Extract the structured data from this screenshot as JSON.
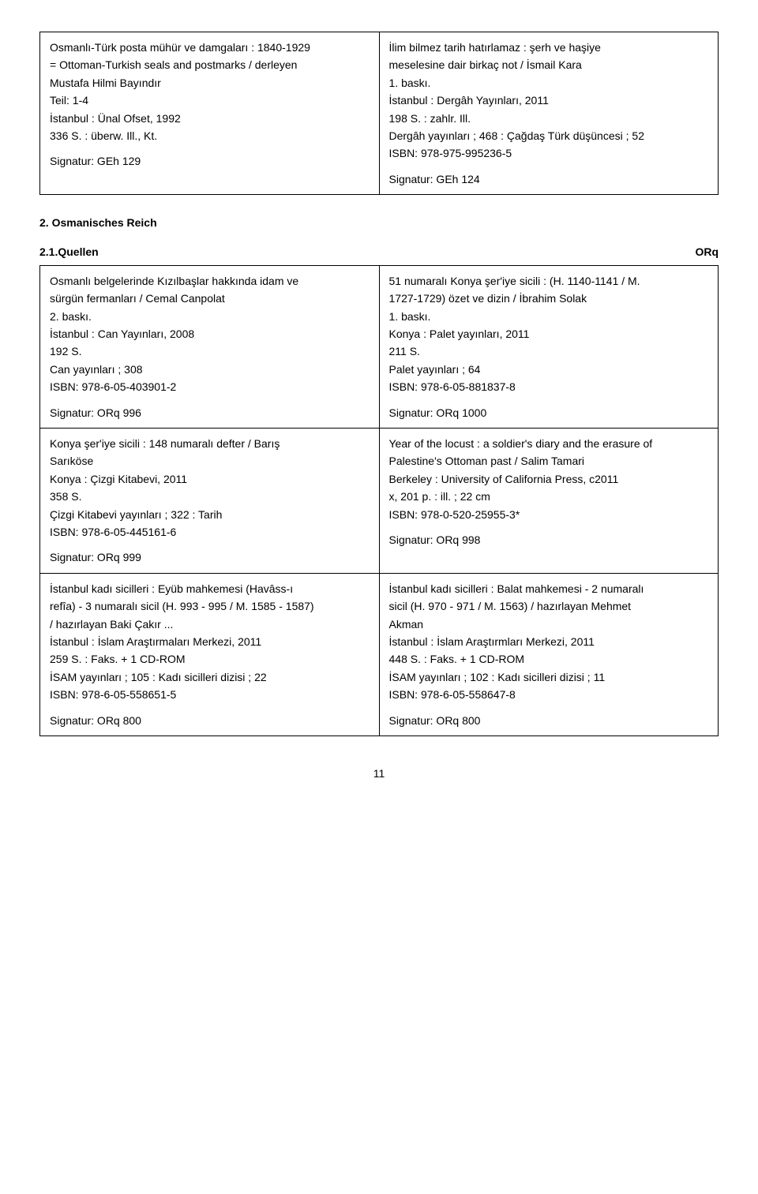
{
  "table1": {
    "left": {
      "lines": [
        "Osmanlı-Türk posta mühür ve damgaları : 1840-1929",
        "= Ottoman-Turkish seals and postmarks / derleyen",
        "Mustafa Hilmi Bayındır",
        "Teil: 1-4",
        "İstanbul : Ünal Ofset, 1992",
        "336 S. : überw. Ill., Kt."
      ],
      "signature": "Signatur: GEh 129"
    },
    "right": {
      "lines": [
        "İlim bilmez tarih hatırlamaz : şerh ve haşiye",
        "meselesine dair birkaç not / İsmail Kara",
        "1. baskı.",
        "İstanbul : Dergâh Yayınları, 2011",
        "198 S. : zahlr. Ill.",
        "Dergâh yayınları ; 468 : Çağdaş Türk düşüncesi ; 52",
        "ISBN: 978-975-995236-5"
      ],
      "signature": "Signatur: GEh 124"
    }
  },
  "section_heading": "2. Osmanisches Reich",
  "subsection": {
    "label": "2.1.Quellen",
    "code": "ORq"
  },
  "table2": {
    "row1": {
      "left": {
        "lines": [
          "Osmanlı belgelerinde Kızılbaşlar hakkında idam ve",
          "sürgün fermanları / Cemal Canpolat",
          "2. baskı.",
          "İstanbul : Can Yayınları, 2008",
          "192 S.",
          "Can yayınları ; 308",
          "ISBN: 978-6-05-403901-2"
        ],
        "signature": "Signatur: ORq 996"
      },
      "right": {
        "lines": [
          "51 numaralı Konya şer'iye sicili : (H. 1140-1141 / M.",
          "1727-1729) özet ve dizin / İbrahim Solak",
          "1. baskı.",
          "Konya : Palet yayınları, 2011",
          "211 S.",
          "Palet yayınları ; 64",
          "ISBN: 978-6-05-881837-8"
        ],
        "signature": "Signatur: ORq 1000"
      }
    },
    "row2": {
      "left": {
        "lines": [
          "Konya şer'iye sicili : 148 numaralı defter / Barış",
          "Sarıköse",
          "Konya : Çizgi Kitabevi, 2011",
          "358 S.",
          "Çizgi Kitabevi yayınları ; 322 : Tarih",
          "ISBN: 978-6-05-445161-6"
        ],
        "signature": "Signatur: ORq 999"
      },
      "right": {
        "lines": [
          "Year of the locust : a soldier's diary and the erasure of",
          "Palestine's Ottoman past / Salim Tamari",
          "Berkeley : University of California Press, c2011",
          "x, 201 p. : ill. ; 22 cm",
          "ISBN: 978-0-520-25955-3*"
        ],
        "signature": "Signatur: ORq 998"
      }
    },
    "row3": {
      "left": {
        "lines": [
          "İstanbul kadı sicilleri : Eyüb mahkemesi (Havâss-ı",
          "refîa) - 3 numaralı sicil (H. 993 - 995 / M. 1585 - 1587)",
          "/ hazırlayan Baki Çakır ...",
          "İstanbul : İslam Araştırmaları Merkezi, 2011",
          "259 S. : Faks. + 1 CD-ROM",
          "İSAM yayınları ; 105 : Kadı sicilleri dizisi ; 22",
          "ISBN: 978-6-05-558651-5"
        ],
        "signature": "Signatur: ORq 800"
      },
      "right": {
        "lines": [
          "İstanbul kadı sicilleri  : Balat mahkemesi - 2 numaralı",
          "sicil (H. 970 - 971 / M. 1563) / hazırlayan Mehmet",
          "Akman",
          "İstanbul : İslam Araştırmları Merkezi, 2011",
          "448 S. : Faks. + 1 CD-ROM",
          "İSAM yayınları ; 102 : Kadı sicilleri dizisi ; 11",
          "ISBN: 978-6-05-558647-8"
        ],
        "signature": "Signatur: ORq 800"
      }
    }
  },
  "page_number": "11"
}
